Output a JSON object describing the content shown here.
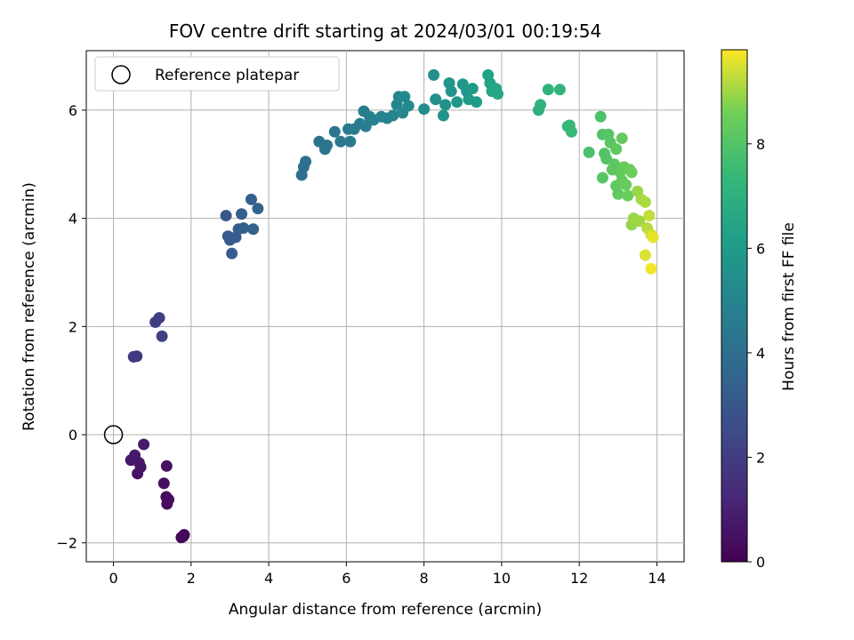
{
  "chart_data": {
    "type": "scatter",
    "title": "FOV centre drift starting at 2024/03/01 00:19:54",
    "xlabel": "Angular distance from reference (arcmin)",
    "ylabel": "Rotation from reference (arcmin)",
    "xlim": [
      -0.7,
      14.7
    ],
    "ylim": [
      -2.35,
      7.1
    ],
    "xticks": [
      0,
      2,
      4,
      6,
      8,
      10,
      12,
      14
    ],
    "yticks": [
      -2,
      0,
      2,
      4,
      6
    ],
    "grid": true,
    "legend": {
      "position": "top-left",
      "entries": [
        "Reference platepar"
      ]
    },
    "reference_point": {
      "x": 0,
      "y": 0
    },
    "colorbar": {
      "label": "Hours from first FF file",
      "range": [
        0,
        9.8
      ],
      "ticks": [
        0,
        2,
        4,
        6,
        8
      ],
      "colormap": "viridis"
    },
    "points": [
      {
        "x": 1.75,
        "y": -1.9,
        "c": 0.1
      },
      {
        "x": 1.82,
        "y": -1.85,
        "c": 0.15
      },
      {
        "x": 1.8,
        "y": -1.88,
        "c": 0.2
      },
      {
        "x": 1.38,
        "y": -1.28,
        "c": 0.3
      },
      {
        "x": 1.36,
        "y": -1.15,
        "c": 0.35
      },
      {
        "x": 1.42,
        "y": -1.2,
        "c": 0.4
      },
      {
        "x": 1.3,
        "y": -0.9,
        "c": 0.45
      },
      {
        "x": 1.37,
        "y": -0.58,
        "c": 0.5
      },
      {
        "x": 0.62,
        "y": -0.72,
        "c": 0.55
      },
      {
        "x": 0.7,
        "y": -0.6,
        "c": 0.6
      },
      {
        "x": 0.66,
        "y": -0.52,
        "c": 0.65
      },
      {
        "x": 0.45,
        "y": -0.47,
        "c": 0.7
      },
      {
        "x": 0.55,
        "y": -0.38,
        "c": 0.75
      },
      {
        "x": 0.78,
        "y": -0.18,
        "c": 0.8
      },
      {
        "x": 0.52,
        "y": 1.44,
        "c": 1.85
      },
      {
        "x": 0.6,
        "y": 1.45,
        "c": 1.9
      },
      {
        "x": 1.08,
        "y": 2.08,
        "c": 2.0
      },
      {
        "x": 1.18,
        "y": 2.16,
        "c": 2.05
      },
      {
        "x": 1.25,
        "y": 1.82,
        "c": 2.1
      },
      {
        "x": 2.9,
        "y": 4.05,
        "c": 3.0
      },
      {
        "x": 2.95,
        "y": 3.67,
        "c": 3.05
      },
      {
        "x": 3.0,
        "y": 3.6,
        "c": 3.1
      },
      {
        "x": 3.05,
        "y": 3.35,
        "c": 3.15
      },
      {
        "x": 3.15,
        "y": 3.65,
        "c": 3.2
      },
      {
        "x": 3.22,
        "y": 3.8,
        "c": 3.25
      },
      {
        "x": 3.3,
        "y": 4.08,
        "c": 3.3
      },
      {
        "x": 3.35,
        "y": 3.82,
        "c": 3.35
      },
      {
        "x": 3.55,
        "y": 4.35,
        "c": 3.4
      },
      {
        "x": 3.6,
        "y": 3.8,
        "c": 3.45
      },
      {
        "x": 3.72,
        "y": 4.18,
        "c": 3.5
      },
      {
        "x": 4.85,
        "y": 4.8,
        "c": 4.0
      },
      {
        "x": 4.9,
        "y": 4.95,
        "c": 4.05
      },
      {
        "x": 4.95,
        "y": 5.05,
        "c": 4.1
      },
      {
        "x": 5.3,
        "y": 5.42,
        "c": 4.2
      },
      {
        "x": 5.45,
        "y": 5.28,
        "c": 4.25
      },
      {
        "x": 5.5,
        "y": 5.35,
        "c": 4.3
      },
      {
        "x": 5.7,
        "y": 5.6,
        "c": 4.35
      },
      {
        "x": 5.85,
        "y": 5.42,
        "c": 4.4
      },
      {
        "x": 6.05,
        "y": 5.65,
        "c": 4.45
      },
      {
        "x": 6.1,
        "y": 5.42,
        "c": 4.5
      },
      {
        "x": 6.2,
        "y": 5.65,
        "c": 4.55
      },
      {
        "x": 6.35,
        "y": 5.75,
        "c": 4.6
      },
      {
        "x": 6.45,
        "y": 5.98,
        "c": 4.65
      },
      {
        "x": 6.5,
        "y": 5.7,
        "c": 4.7
      },
      {
        "x": 6.6,
        "y": 5.88,
        "c": 4.75
      },
      {
        "x": 6.7,
        "y": 5.82,
        "c": 4.8
      },
      {
        "x": 6.9,
        "y": 5.88,
        "c": 4.9
      },
      {
        "x": 7.05,
        "y": 5.85,
        "c": 4.95
      },
      {
        "x": 7.2,
        "y": 5.9,
        "c": 5.0
      },
      {
        "x": 7.3,
        "y": 6.1,
        "c": 5.05
      },
      {
        "x": 7.35,
        "y": 6.25,
        "c": 5.1
      },
      {
        "x": 7.45,
        "y": 5.95,
        "c": 5.15
      },
      {
        "x": 7.5,
        "y": 6.25,
        "c": 5.2
      },
      {
        "x": 7.6,
        "y": 6.08,
        "c": 5.25
      },
      {
        "x": 8.0,
        "y": 6.02,
        "c": 5.4
      },
      {
        "x": 8.25,
        "y": 6.65,
        "c": 5.5
      },
      {
        "x": 8.3,
        "y": 6.2,
        "c": 5.55
      },
      {
        "x": 8.5,
        "y": 5.9,
        "c": 5.6
      },
      {
        "x": 8.55,
        "y": 6.1,
        "c": 5.65
      },
      {
        "x": 8.65,
        "y": 6.5,
        "c": 5.7
      },
      {
        "x": 8.7,
        "y": 6.35,
        "c": 5.75
      },
      {
        "x": 8.85,
        "y": 6.15,
        "c": 5.8
      },
      {
        "x": 9.0,
        "y": 6.48,
        "c": 5.85
      },
      {
        "x": 9.1,
        "y": 6.35,
        "c": 5.9
      },
      {
        "x": 9.15,
        "y": 6.2,
        "c": 5.95
      },
      {
        "x": 9.25,
        "y": 6.4,
        "c": 6.0
      },
      {
        "x": 9.35,
        "y": 6.15,
        "c": 6.05
      },
      {
        "x": 9.65,
        "y": 6.65,
        "c": 6.3
      },
      {
        "x": 9.7,
        "y": 6.5,
        "c": 6.35
      },
      {
        "x": 9.75,
        "y": 6.35,
        "c": 6.4
      },
      {
        "x": 9.85,
        "y": 6.4,
        "c": 6.45
      },
      {
        "x": 9.9,
        "y": 6.3,
        "c": 6.5
      },
      {
        "x": 10.95,
        "y": 6.0,
        "c": 7.0
      },
      {
        "x": 11.0,
        "y": 6.1,
        "c": 7.05
      },
      {
        "x": 11.2,
        "y": 6.38,
        "c": 7.1
      },
      {
        "x": 11.5,
        "y": 6.38,
        "c": 7.2
      },
      {
        "x": 11.7,
        "y": 5.7,
        "c": 7.3
      },
      {
        "x": 11.75,
        "y": 5.72,
        "c": 7.35
      },
      {
        "x": 11.8,
        "y": 5.6,
        "c": 7.4
      },
      {
        "x": 12.25,
        "y": 5.22,
        "c": 7.8
      },
      {
        "x": 12.55,
        "y": 5.88,
        "c": 7.9
      },
      {
        "x": 12.6,
        "y": 5.55,
        "c": 7.95
      },
      {
        "x": 12.65,
        "y": 5.2,
        "c": 8.0
      },
      {
        "x": 12.7,
        "y": 5.1,
        "c": 8.05
      },
      {
        "x": 12.6,
        "y": 4.75,
        "c": 8.1
      },
      {
        "x": 12.75,
        "y": 5.55,
        "c": 8.1
      },
      {
        "x": 12.8,
        "y": 5.4,
        "c": 8.15
      },
      {
        "x": 12.85,
        "y": 4.9,
        "c": 8.2
      },
      {
        "x": 12.9,
        "y": 5.0,
        "c": 8.2
      },
      {
        "x": 12.95,
        "y": 4.6,
        "c": 8.25
      },
      {
        "x": 12.95,
        "y": 5.28,
        "c": 8.25
      },
      {
        "x": 13.0,
        "y": 4.45,
        "c": 8.3
      },
      {
        "x": 13.05,
        "y": 4.85,
        "c": 8.3
      },
      {
        "x": 13.1,
        "y": 5.48,
        "c": 8.35
      },
      {
        "x": 13.1,
        "y": 4.7,
        "c": 8.35
      },
      {
        "x": 13.15,
        "y": 4.95,
        "c": 8.4
      },
      {
        "x": 13.2,
        "y": 4.62,
        "c": 8.4
      },
      {
        "x": 13.25,
        "y": 4.42,
        "c": 8.45
      },
      {
        "x": 13.3,
        "y": 4.9,
        "c": 8.45
      },
      {
        "x": 13.35,
        "y": 4.85,
        "c": 8.5
      },
      {
        "x": 13.35,
        "y": 3.88,
        "c": 8.9
      },
      {
        "x": 13.4,
        "y": 4.0,
        "c": 8.95
      },
      {
        "x": 13.5,
        "y": 4.5,
        "c": 8.95
      },
      {
        "x": 13.55,
        "y": 3.95,
        "c": 9.0
      },
      {
        "x": 13.6,
        "y": 4.35,
        "c": 9.05
      },
      {
        "x": 13.7,
        "y": 4.3,
        "c": 9.1
      },
      {
        "x": 13.75,
        "y": 3.82,
        "c": 9.2
      },
      {
        "x": 13.8,
        "y": 4.05,
        "c": 9.3
      },
      {
        "x": 13.85,
        "y": 3.7,
        "c": 9.4
      },
      {
        "x": 13.7,
        "y": 3.32,
        "c": 9.5
      },
      {
        "x": 13.9,
        "y": 3.65,
        "c": 9.6
      },
      {
        "x": 13.85,
        "y": 3.07,
        "c": 9.7
      }
    ]
  }
}
